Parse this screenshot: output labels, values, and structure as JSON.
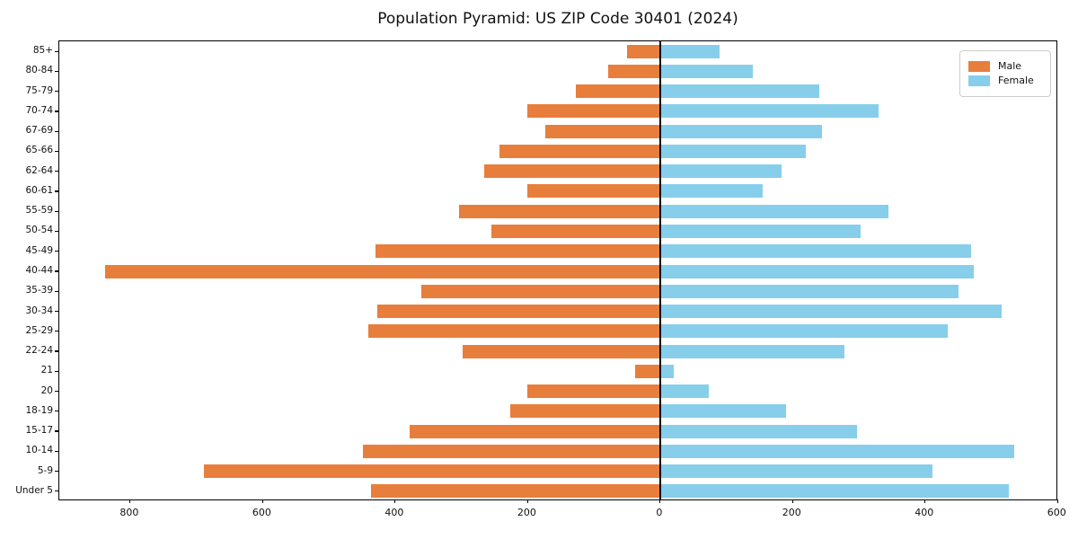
{
  "figure": {
    "title": "Population Pyramid: US ZIP Code 30401 (2024)"
  },
  "legend": {
    "male_label": "Male",
    "female_label": "Female"
  },
  "colors": {
    "male": "#E87E3C",
    "female": "#87CEEB",
    "axis": "#000000",
    "background": "#FFFFFF",
    "legend_border": "#CCCCCC"
  },
  "chart_data": {
    "type": "bar",
    "subtype": "population-pyramid",
    "title": "Population Pyramid: US ZIP Code 30401 (2024)",
    "xlabel": "",
    "ylabel": "",
    "grid": false,
    "legend_position": "upper-right",
    "categories_top_to_bottom": [
      "85+",
      "80-84",
      "75-79",
      "70-74",
      "67-69",
      "65-66",
      "62-64",
      "60-61",
      "55-59",
      "50-54",
      "45-49",
      "40-44",
      "35-39",
      "30-34",
      "25-29",
      "22-24",
      "21",
      "20",
      "18-19",
      "15-17",
      "10-14",
      "5-9",
      "Under 5"
    ],
    "series": [
      {
        "name": "Male",
        "side": "left",
        "color": "#E87E3C",
        "values": [
          50,
          78,
          127,
          200,
          173,
          242,
          265,
          200,
          304,
          255,
          430,
          838,
          360,
          427,
          441,
          298,
          38,
          200,
          226,
          378,
          449,
          689,
          437
        ]
      },
      {
        "name": "Female",
        "side": "right",
        "color": "#87CEEB",
        "values": [
          90,
          140,
          240,
          330,
          245,
          220,
          183,
          155,
          345,
          302,
          470,
          473,
          450,
          515,
          434,
          278,
          20,
          73,
          190,
          297,
          534,
          411,
          527
        ]
      }
    ],
    "x_ticks": {
      "values": [
        -800,
        -600,
        -400,
        -200,
        0,
        200,
        400,
        600
      ],
      "labels": [
        "800",
        "600",
        "400",
        "200",
        "0",
        "200",
        "400",
        "600"
      ]
    },
    "xlim": [
      -907,
      601
    ]
  }
}
